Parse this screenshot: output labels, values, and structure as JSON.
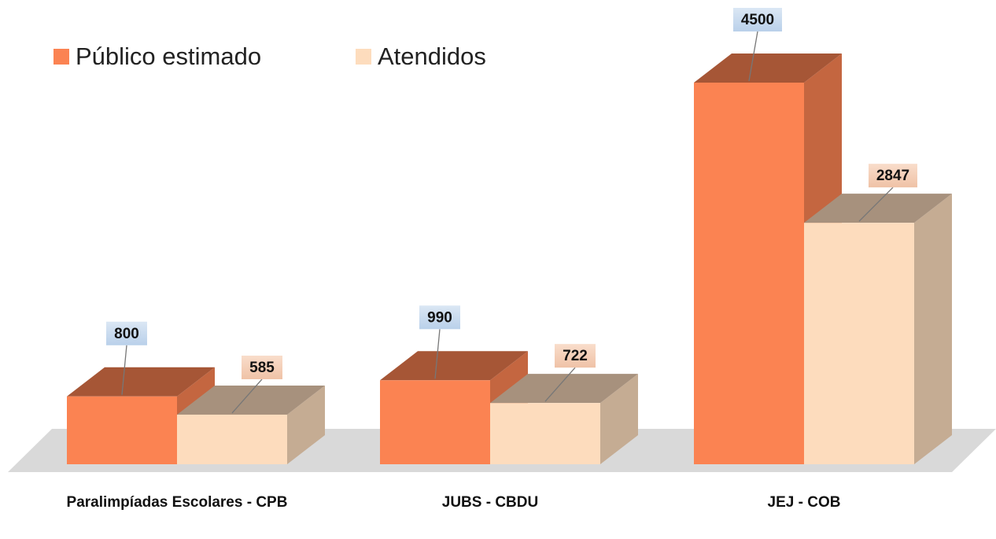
{
  "chart_data": {
    "type": "bar",
    "categories": [
      "Paralimpíadas Escolares - CPB",
      "JUBS - CBDU",
      "JEJ - COB"
    ],
    "series": [
      {
        "name": "Público estimado",
        "color": "#fb8352",
        "values": [
          800,
          990,
          4500
        ]
      },
      {
        "name": "Atendidos",
        "color": "#fddcbd",
        "values": [
          585,
          722,
          2847
        ]
      }
    ]
  }
}
